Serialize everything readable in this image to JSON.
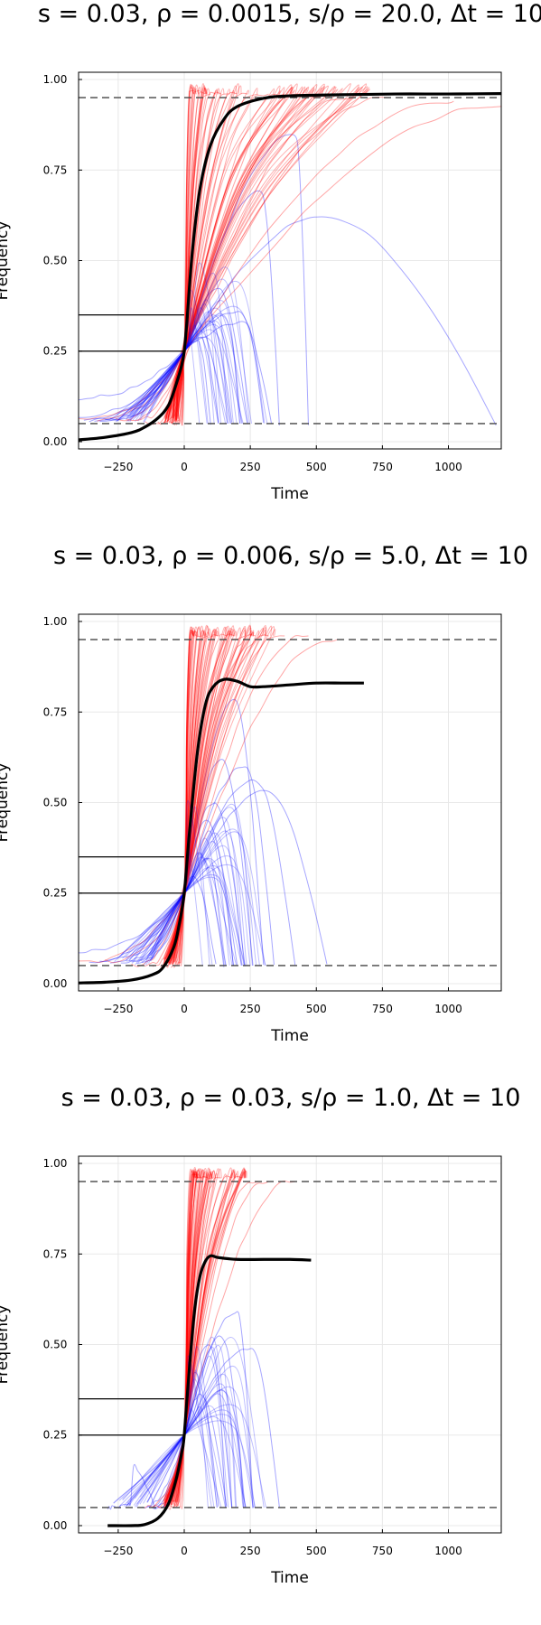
{
  "chart_data": [
    {
      "type": "line",
      "title": "s = 0.03, ρ = 0.0015, s/ρ = 20.0, Δt = 10",
      "xlabel": "Time",
      "ylabel": "Frequency",
      "xlim": [
        -400,
        1200
      ],
      "ylim": [
        -0.02,
        1.02
      ],
      "xticks": [
        -250,
        0,
        250,
        500,
        750,
        1000
      ],
      "yticks": [
        0.0,
        0.25,
        0.5,
        0.75,
        1.0
      ],
      "xtick_labels": [
        "−250",
        "0",
        "250",
        "500",
        "750",
        "1000"
      ],
      "ytick_labels": [
        "0.00",
        "0.25",
        "0.50",
        "0.75",
        "1.00"
      ],
      "grid": true,
      "legend": "none",
      "reference_lines": {
        "dashed_y": [
          0.05,
          0.95
        ],
        "solid_y_segments": [
          {
            "y": 0.35,
            "x_from": -400,
            "x_to": 0
          },
          {
            "y": 0.25,
            "x_from": -400,
            "x_to": 0
          }
        ]
      },
      "series": [
        {
          "role": "mean",
          "color": "#000000",
          "x": [
            -400,
            -300,
            -200,
            -150,
            -100,
            -60,
            -30,
            -10,
            0,
            10,
            30,
            60,
            100,
            150,
            200,
            300,
            400,
            600,
            800,
            1000,
            1200
          ],
          "y": [
            0.005,
            0.012,
            0.025,
            0.04,
            0.065,
            0.1,
            0.16,
            0.21,
            0.25,
            0.33,
            0.52,
            0.7,
            0.82,
            0.89,
            0.925,
            0.948,
            0.955,
            0.958,
            0.96,
            0.96,
            0.961
          ]
        }
      ],
      "trajectories": {
        "fixed_color": "#ff0000",
        "lost_color": "#0000ff",
        "fixed": [
          {
            "start_x": -400,
            "start_y": 0.06,
            "t_fix": 20,
            "end_y": 0.97
          },
          {
            "start_x": -330,
            "start_y": 0.06,
            "t_fix": 40,
            "end_y": 0.97
          },
          {
            "start_x": -260,
            "start_y": 0.06,
            "t_fix": 60,
            "end_y": 0.96
          },
          {
            "start_x": -220,
            "start_y": 0.06,
            "t_fix": 80,
            "end_y": 0.96
          },
          {
            "start_x": -180,
            "start_y": 0.06,
            "t_fix": 100,
            "end_y": 0.96
          },
          {
            "start_x": -150,
            "start_y": 0.05,
            "t_fix": 120,
            "end_y": 0.96
          },
          {
            "start_x": -120,
            "start_y": 0.05,
            "t_fix": 150,
            "end_y": 0.96
          },
          {
            "start_x": -100,
            "start_y": 0.05,
            "t_fix": 180,
            "end_y": 0.96
          },
          {
            "start_x": -80,
            "start_y": 0.05,
            "t_fix": 220,
            "end_y": 0.96
          },
          {
            "start_x": -60,
            "start_y": 0.05,
            "t_fix": 260,
            "end_y": 0.96
          },
          {
            "start_x": -50,
            "start_y": 0.05,
            "t_fix": 300,
            "end_y": 0.96
          },
          {
            "start_x": -40,
            "start_y": 0.05,
            "t_fix": 360,
            "end_y": 0.96
          },
          {
            "start_x": -30,
            "start_y": 0.05,
            "t_fix": 420,
            "end_y": 0.96
          },
          {
            "start_x": -25,
            "start_y": 0.05,
            "t_fix": 500,
            "end_y": 0.95
          },
          {
            "start_x": -20,
            "start_y": 0.05,
            "t_fix": 620,
            "end_y": 0.95
          },
          {
            "start_x": -15,
            "start_y": 0.05,
            "t_fix": 760,
            "end_y": 0.95
          },
          {
            "start_x": -10,
            "start_y": 0.05,
            "t_fix": 1000,
            "end_y": 0.94
          },
          {
            "start_x": -8,
            "start_y": 0.05,
            "t_fix": 1200,
            "end_y": 0.93
          }
        ],
        "lost": [
          {
            "start_x": -400,
            "start_y": 0.12,
            "peak_x": 60,
            "peak_y": 0.29,
            "end_x": 130,
            "end_y": 0.05
          },
          {
            "start_x": -400,
            "start_y": 0.07,
            "peak_x": 130,
            "peak_y": 0.42,
            "end_x": 240,
            "end_y": 0.05
          },
          {
            "start_x": -380,
            "start_y": 0.06,
            "peak_x": 200,
            "peak_y": 0.36,
            "end_x": 330,
            "end_y": 0.05
          },
          {
            "start_x": -360,
            "start_y": 0.06,
            "peak_x": 290,
            "peak_y": 0.69,
            "end_x": 360,
            "end_y": 0.05
          },
          {
            "start_x": -340,
            "start_y": 0.06,
            "peak_x": 420,
            "peak_y": 0.85,
            "end_x": 470,
            "end_y": 0.05
          },
          {
            "start_x": -320,
            "start_y": 0.06,
            "peak_x": 520,
            "peak_y": 0.62,
            "end_x": 1180,
            "end_y": 0.05
          },
          {
            "start_x": -300,
            "start_y": 0.06,
            "peak_x": 100,
            "peak_y": 0.33,
            "end_x": 180,
            "end_y": 0.05
          },
          {
            "start_x": -280,
            "start_y": 0.06,
            "peak_x": 230,
            "peak_y": 0.33,
            "end_x": 300,
            "end_y": 0.05
          },
          {
            "start_x": -260,
            "start_y": 0.06,
            "peak_x": 50,
            "peak_y": 0.28,
            "end_x": 100,
            "end_y": 0.05
          }
        ]
      }
    },
    {
      "type": "line",
      "title": "s = 0.03, ρ = 0.006, s/ρ = 5.0, Δt = 10",
      "xlabel": "Time",
      "ylabel": "Frequency",
      "xlim": [
        -400,
        1200
      ],
      "ylim": [
        -0.02,
        1.02
      ],
      "xticks": [
        -250,
        0,
        250,
        500,
        750,
        1000
      ],
      "yticks": [
        0.0,
        0.25,
        0.5,
        0.75,
        1.0
      ],
      "xtick_labels": [
        "−250",
        "0",
        "250",
        "500",
        "750",
        "1000"
      ],
      "ytick_labels": [
        "0.00",
        "0.25",
        "0.50",
        "0.75",
        "1.00"
      ],
      "grid": true,
      "legend": "none",
      "reference_lines": {
        "dashed_y": [
          0.05,
          0.95
        ],
        "solid_y_segments": [
          {
            "y": 0.35,
            "x_from": -400,
            "x_to": 0
          },
          {
            "y": 0.25,
            "x_from": -400,
            "x_to": 0
          }
        ]
      },
      "series": [
        {
          "role": "mean",
          "color": "#000000",
          "x": [
            -400,
            -300,
            -200,
            -120,
            -80,
            -40,
            -20,
            0,
            20,
            50,
            80,
            110,
            150,
            200,
            250,
            300,
            400,
            500,
            600,
            680
          ],
          "y": [
            0.002,
            0.004,
            0.01,
            0.025,
            0.045,
            0.1,
            0.16,
            0.25,
            0.42,
            0.64,
            0.77,
            0.82,
            0.84,
            0.835,
            0.82,
            0.82,
            0.825,
            0.83,
            0.83,
            0.83
          ]
        }
      ],
      "trajectories": {
        "fixed_color": "#ff0000",
        "lost_color": "#0000ff",
        "fixed": [
          {
            "start_x": -400,
            "start_y": 0.06,
            "t_fix": 30,
            "end_y": 0.97
          },
          {
            "start_x": -300,
            "start_y": 0.06,
            "t_fix": 50,
            "end_y": 0.96
          },
          {
            "start_x": -200,
            "start_y": 0.05,
            "t_fix": 70,
            "end_y": 0.96
          },
          {
            "start_x": -150,
            "start_y": 0.05,
            "t_fix": 90,
            "end_y": 0.96
          },
          {
            "start_x": -120,
            "start_y": 0.05,
            "t_fix": 110,
            "end_y": 0.96
          },
          {
            "start_x": -90,
            "start_y": 0.05,
            "t_fix": 140,
            "end_y": 0.96
          },
          {
            "start_x": -70,
            "start_y": 0.05,
            "t_fix": 170,
            "end_y": 0.96
          },
          {
            "start_x": -50,
            "start_y": 0.05,
            "t_fix": 210,
            "end_y": 0.96
          },
          {
            "start_x": -40,
            "start_y": 0.05,
            "t_fix": 250,
            "end_y": 0.96
          },
          {
            "start_x": -30,
            "start_y": 0.05,
            "t_fix": 300,
            "end_y": 0.96
          },
          {
            "start_x": -25,
            "start_y": 0.05,
            "t_fix": 360,
            "end_y": 0.96
          },
          {
            "start_x": -20,
            "start_y": 0.05,
            "t_fix": 450,
            "end_y": 0.96
          },
          {
            "start_x": -15,
            "start_y": 0.05,
            "t_fix": 560,
            "end_y": 0.95
          }
        ],
        "lost": [
          {
            "start_x": -400,
            "start_y": 0.09,
            "peak_x": 30,
            "peak_y": 0.3,
            "end_x": 120,
            "end_y": 0.05
          },
          {
            "start_x": -360,
            "start_y": 0.06,
            "peak_x": 80,
            "peak_y": 0.45,
            "end_x": 200,
            "end_y": 0.05
          },
          {
            "start_x": -320,
            "start_y": 0.06,
            "peak_x": 140,
            "peak_y": 0.62,
            "end_x": 260,
            "end_y": 0.05
          },
          {
            "start_x": -280,
            "start_y": 0.06,
            "peak_x": 190,
            "peak_y": 0.78,
            "end_x": 300,
            "end_y": 0.05
          },
          {
            "start_x": -240,
            "start_y": 0.06,
            "peak_x": 230,
            "peak_y": 0.6,
            "end_x": 340,
            "end_y": 0.05
          },
          {
            "start_x": -220,
            "start_y": 0.06,
            "peak_x": 270,
            "peak_y": 0.56,
            "end_x": 420,
            "end_y": 0.05
          },
          {
            "start_x": -200,
            "start_y": 0.06,
            "peak_x": 310,
            "peak_y": 0.53,
            "end_x": 540,
            "end_y": 0.05
          },
          {
            "start_x": -180,
            "start_y": 0.06,
            "peak_x": 60,
            "peak_y": 0.36,
            "end_x": 150,
            "end_y": 0.05
          },
          {
            "start_x": -160,
            "start_y": 0.06,
            "peak_x": 110,
            "peak_y": 0.5,
            "end_x": 230,
            "end_y": 0.05
          }
        ]
      }
    },
    {
      "type": "line",
      "title": "s = 0.03, ρ = 0.03, s/ρ = 1.0, Δt = 10",
      "xlabel": "Time",
      "ylabel": "Frequency",
      "xlim": [
        -400,
        1200
      ],
      "ylim": [
        -0.02,
        1.02
      ],
      "xticks": [
        -250,
        0,
        250,
        500,
        750,
        1000
      ],
      "yticks": [
        0.0,
        0.25,
        0.5,
        0.75,
        1.0
      ],
      "xtick_labels": [
        "−250",
        "0",
        "250",
        "500",
        "750",
        "1000"
      ],
      "ytick_labels": [
        "0.00",
        "0.25",
        "0.50",
        "0.75",
        "1.00"
      ],
      "grid": true,
      "legend": "none",
      "reference_lines": {
        "dashed_y": [
          0.05,
          0.95
        ],
        "solid_y_segments": [
          {
            "y": 0.35,
            "x_from": -400,
            "x_to": 0
          },
          {
            "y": 0.25,
            "x_from": -400,
            "x_to": 0
          }
        ]
      },
      "series": [
        {
          "role": "mean",
          "color": "#000000",
          "x": [
            -290,
            -200,
            -150,
            -100,
            -60,
            -30,
            -10,
            0,
            20,
            40,
            60,
            80,
            100,
            130,
            200,
            300,
            400,
            480
          ],
          "y": [
            0.0,
            0.0,
            0.003,
            0.02,
            0.06,
            0.13,
            0.2,
            0.25,
            0.44,
            0.6,
            0.69,
            0.73,
            0.745,
            0.74,
            0.735,
            0.735,
            0.735,
            0.733
          ]
        }
      ],
      "trajectories": {
        "fixed_color": "#ff0000",
        "lost_color": "#0000ff",
        "fixed": [
          {
            "start_x": -150,
            "start_y": 0.05,
            "t_fix": 30,
            "end_y": 0.97
          },
          {
            "start_x": -120,
            "start_y": 0.05,
            "t_fix": 50,
            "end_y": 0.96
          },
          {
            "start_x": -100,
            "start_y": 0.05,
            "t_fix": 70,
            "end_y": 0.96
          },
          {
            "start_x": -80,
            "start_y": 0.05,
            "t_fix": 90,
            "end_y": 0.96
          },
          {
            "start_x": -60,
            "start_y": 0.05,
            "t_fix": 120,
            "end_y": 0.96
          },
          {
            "start_x": -50,
            "start_y": 0.05,
            "t_fix": 160,
            "end_y": 0.96
          },
          {
            "start_x": -40,
            "start_y": 0.05,
            "t_fix": 200,
            "end_y": 0.96
          },
          {
            "start_x": -30,
            "start_y": 0.05,
            "t_fix": 260,
            "end_y": 0.95
          },
          {
            "start_x": -20,
            "start_y": 0.05,
            "t_fix": 300,
            "end_y": 0.95
          },
          {
            "start_x": -10,
            "start_y": 0.05,
            "t_fix": 400,
            "end_y": 0.95
          }
        ],
        "lost": [
          {
            "start_x": -290,
            "start_y": 0.05,
            "peak_x": -200,
            "peak_y": 0.16,
            "end_x": -110,
            "end_y": 0.05
          },
          {
            "start_x": -160,
            "start_y": 0.05,
            "peak_x": 40,
            "peak_y": 0.42,
            "end_x": 130,
            "end_y": 0.05
          },
          {
            "start_x": -140,
            "start_y": 0.05,
            "peak_x": 90,
            "peak_y": 0.5,
            "end_x": 180,
            "end_y": 0.05
          },
          {
            "start_x": -120,
            "start_y": 0.05,
            "peak_x": 140,
            "peak_y": 0.52,
            "end_x": 230,
            "end_y": 0.05
          },
          {
            "start_x": -110,
            "start_y": 0.05,
            "peak_x": 200,
            "peak_y": 0.59,
            "end_x": 260,
            "end_y": 0.05
          },
          {
            "start_x": -100,
            "start_y": 0.05,
            "peak_x": 250,
            "peak_y": 0.49,
            "end_x": 360,
            "end_y": 0.05
          },
          {
            "start_x": -90,
            "start_y": 0.05,
            "peak_x": 60,
            "peak_y": 0.36,
            "end_x": 160,
            "end_y": 0.05
          }
        ]
      }
    }
  ]
}
